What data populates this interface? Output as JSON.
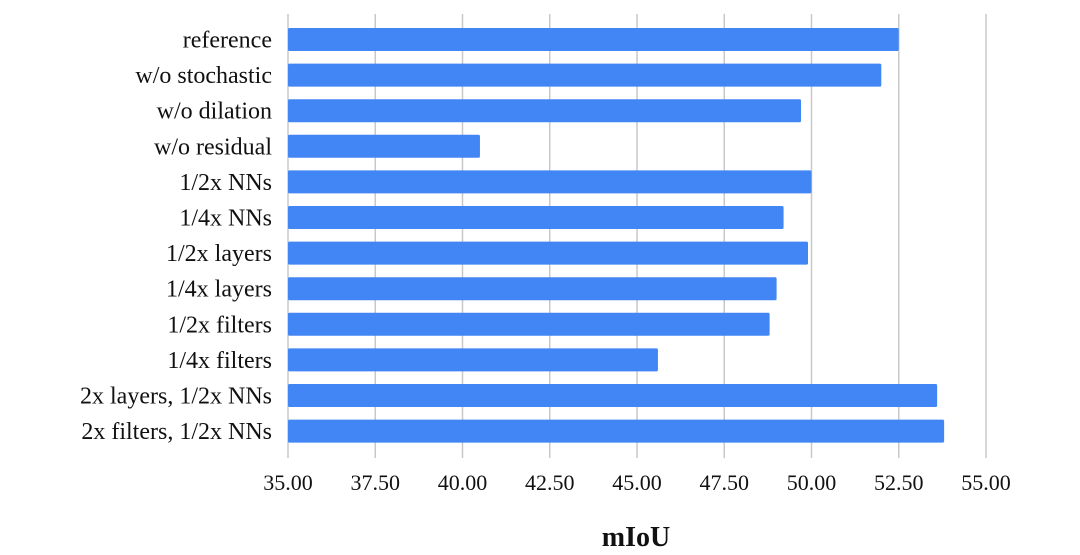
{
  "chart_data": {
    "type": "bar",
    "orientation": "horizontal",
    "categories": [
      "reference",
      "w/o stochastic",
      "w/o dilation",
      "w/o residual",
      "1/2x NNs",
      "1/4x NNs",
      "1/2x layers",
      "1/4x layers",
      "1/2x filters",
      "1/4x filters",
      "2x layers, 1/2x NNs",
      "2x filters, 1/2x NNs"
    ],
    "values": [
      52.5,
      52.0,
      49.7,
      40.5,
      50.0,
      49.2,
      49.9,
      49.0,
      48.8,
      45.6,
      53.6,
      53.8
    ],
    "xlim": [
      35.0,
      55.0
    ],
    "xticks": [
      "35.00",
      "37.50",
      "40.00",
      "42.50",
      "45.00",
      "47.50",
      "50.00",
      "52.50",
      "55.00"
    ],
    "xlabel": "mIoU",
    "ylabel": "",
    "title": "",
    "grid": true,
    "bar_color": "#4285f4"
  }
}
